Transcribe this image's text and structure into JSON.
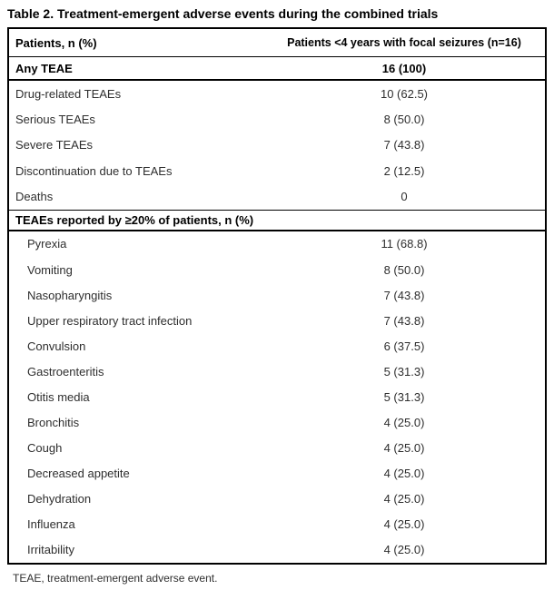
{
  "title": "Table 2. Treatment-emergent adverse events during the combined trials",
  "table": {
    "header": {
      "col1": "Patients, n (%)",
      "col2": "Patients <4 years with focal seizures (n=16)"
    },
    "summary_row": {
      "label": "Any TEAE",
      "value": "16 (100)"
    },
    "overview_rows": [
      {
        "label": "Drug-related TEAEs",
        "value": "10 (62.5)"
      },
      {
        "label": "Serious TEAEs",
        "value": "8 (50.0)"
      },
      {
        "label": "Severe TEAEs",
        "value": "7 (43.8)"
      },
      {
        "label": "Discontinuation due to TEAEs",
        "value": "2 (12.5)"
      },
      {
        "label": "Deaths",
        "value": "0"
      }
    ],
    "section_header": "TEAEs reported by ≥20% of patients, n (%)",
    "teae_rows": [
      {
        "label": "Pyrexia",
        "value": "11 (68.8)"
      },
      {
        "label": "Vomiting",
        "value": "8 (50.0)"
      },
      {
        "label": "Nasopharyngitis",
        "value": "7 (43.8)"
      },
      {
        "label": "Upper respiratory tract infection",
        "value": "7 (43.8)"
      },
      {
        "label": "Convulsion",
        "value": "6 (37.5)"
      },
      {
        "label": "Gastroenteritis",
        "value": "5 (31.3)"
      },
      {
        "label": "Otitis media",
        "value": "5 (31.3)"
      },
      {
        "label": "Bronchitis",
        "value": "4 (25.0)"
      },
      {
        "label": "Cough",
        "value": "4 (25.0)"
      },
      {
        "label": "Decreased appetite",
        "value": "4 (25.0)"
      },
      {
        "label": "Dehydration",
        "value": "4 (25.0)"
      },
      {
        "label": "Influenza",
        "value": "4 (25.0)"
      },
      {
        "label": "Irritability",
        "value": "4 (25.0)"
      }
    ],
    "footnote": "TEAE, treatment-emergent adverse event."
  }
}
